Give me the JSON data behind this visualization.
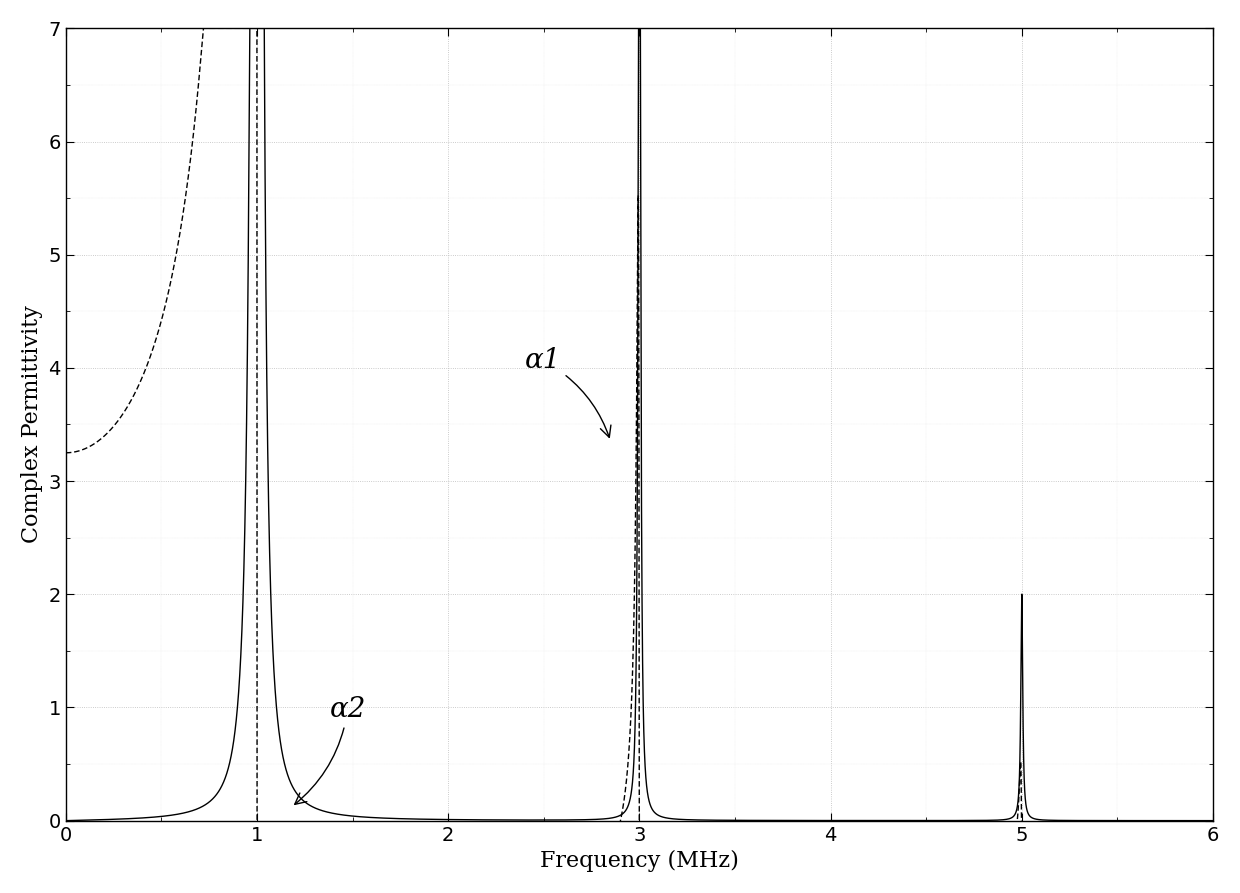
{
  "title": "",
  "xlabel": "Frequency (MHz)",
  "ylabel": "Complex Permittivity",
  "xlim": [
    0,
    6
  ],
  "ylim": [
    0,
    7
  ],
  "xticks": [
    0,
    1,
    2,
    3,
    4,
    5,
    6
  ],
  "yticks": [
    0,
    1,
    2,
    3,
    4,
    5,
    6,
    7
  ],
  "background_color": "#ffffff",
  "line_color": "#000000",
  "annotation_alpha1": "α1",
  "annotation_alpha2": "α2",
  "f0": 1.0,
  "f1": 3.0,
  "f2": 5.0,
  "eps_s": 3.25,
  "eps_inf": 2.9,
  "gamma0": 0.012,
  "gamma1": 0.012,
  "gamma2": 0.012,
  "A0": 3.5,
  "A1": 0.45,
  "A2": 0.12
}
